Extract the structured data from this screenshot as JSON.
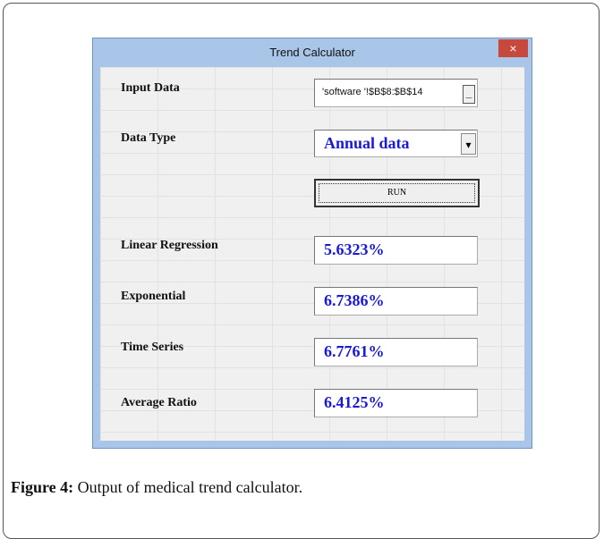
{
  "dialog": {
    "title": "Trend Calculator",
    "close": "×",
    "input": {
      "label": "Input Data",
      "value": "'software '!$B$8:$B$14",
      "button": "_"
    },
    "data_type": {
      "label": "Data Type",
      "value": "Annual data",
      "arrow": "▾"
    },
    "run": "RUN",
    "results": [
      {
        "label": "Linear Regression",
        "value": "5.6323%"
      },
      {
        "label": "Exponential",
        "value": "6.7386%"
      },
      {
        "label": "Time Series",
        "value": "6.7761%"
      },
      {
        "label": "Average Ratio",
        "value": "6.4125%"
      }
    ]
  },
  "caption": {
    "label": "Figure 4:",
    "text": "Output of medical trend calculator."
  }
}
